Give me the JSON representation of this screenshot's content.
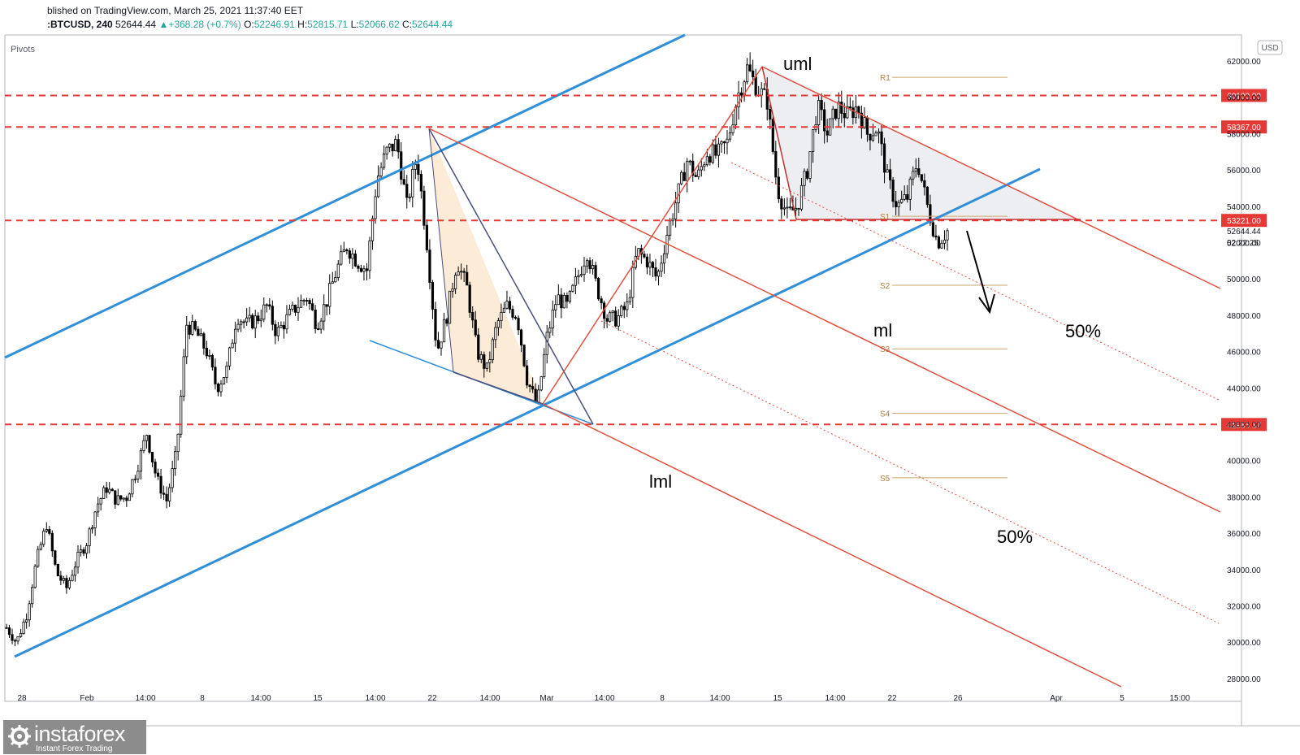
{
  "header": {
    "published": "blished on TradingView.com, March 25, 2021 11:37:40 EET",
    "symbol": ":BTCUSD, 240",
    "last": "52644.44",
    "change": "+368.28 (+0.7%)",
    "o_label": "O:",
    "o_value": "52246.91",
    "h_label": "H:",
    "h_value": "52815.71",
    "l_label": "L:",
    "l_value": "52066.62",
    "c_label": "C:",
    "c_value": "52644.44"
  },
  "indicator_label": "Pivots",
  "currency_label": "USD",
  "chart_data": {
    "type": "line",
    "title": "",
    "ylim": [
      27400,
      63200
    ],
    "y_ticks": [
      62000,
      60000,
      58000,
      56000,
      54000,
      52000,
      50000,
      48000,
      46000,
      44000,
      42000,
      40000,
      38000,
      36000,
      34000,
      32000,
      30000,
      28000
    ],
    "y_tick_labels": [
      "62000.00",
      "60000.00",
      "58000.00",
      "56000.00",
      "54000.00",
      "52000.00",
      "50000.00",
      "48000.00",
      "46000.00",
      "44000.00",
      "42000.00",
      "40000.00",
      "38000.00",
      "36000.00",
      "34000.00",
      "32000.00",
      "30000.00",
      "28000.00"
    ],
    "x_tick_labels": [
      "28",
      "Feb",
      "14:00",
      "8",
      "14:00",
      "15",
      "14:00",
      "22",
      "14:00",
      "Mar",
      "14:00",
      "8",
      "14:00",
      "15",
      "14:00",
      "22",
      "26",
      "Apr",
      "5",
      "15:00"
    ],
    "grid": false,
    "price_lines": [
      {
        "label": "60100.00",
        "value": 60100,
        "color": "#e53935"
      },
      {
        "label": "58367.00",
        "value": 58367,
        "color": "#e53935"
      },
      {
        "label": "53221.00",
        "value": 53221,
        "color": "#e53935"
      },
      {
        "label": "41986.37",
        "value": 41986.37,
        "color": "#e53935"
      }
    ],
    "last_price": {
      "label": "52644.44",
      "value": 52644.44,
      "timer": "02:22:25"
    },
    "pivots": [
      {
        "name": "R1",
        "value": 61100
      },
      {
        "name": "S1",
        "value": 53450
      },
      {
        "name": "S2",
        "value": 49650
      },
      {
        "name": "S3",
        "value": 46150
      },
      {
        "name": "S4",
        "value": 42600
      },
      {
        "name": "S5",
        "value": 39050
      }
    ],
    "annotations": [
      "uml",
      "ml",
      "lml",
      "50%",
      "50%"
    ],
    "candle_path": [
      30800,
      30000,
      31500,
      34500,
      36500,
      33800,
      33000,
      34500,
      35500,
      37500,
      38500,
      37800,
      38000,
      39500,
      41500,
      39000,
      37800,
      40500,
      47500,
      47000,
      46000,
      44000,
      45000,
      48000,
      47500,
      47800,
      48500,
      47000,
      47800,
      48500,
      49000,
      47500,
      48800,
      50500,
      51800,
      51000,
      50500,
      55500,
      57000,
      57500,
      54000,
      56800,
      52000,
      46000,
      48000,
      51000,
      49500,
      46000,
      45000,
      47500,
      48500,
      48000,
      44500,
      43000,
      46800,
      49000,
      48500,
      50000,
      51500,
      49500,
      47800,
      47800,
      48500,
      51500,
      51000,
      50000,
      52500,
      54500,
      56500,
      55500,
      57000,
      56800,
      57500,
      60000,
      61600,
      60500,
      59800,
      55000,
      53500,
      54000,
      56000,
      59500,
      58000,
      59500,
      59000,
      59500,
      58000,
      58300,
      55500,
      54000,
      54500,
      56500,
      54000,
      52000,
      52644
    ]
  }
}
